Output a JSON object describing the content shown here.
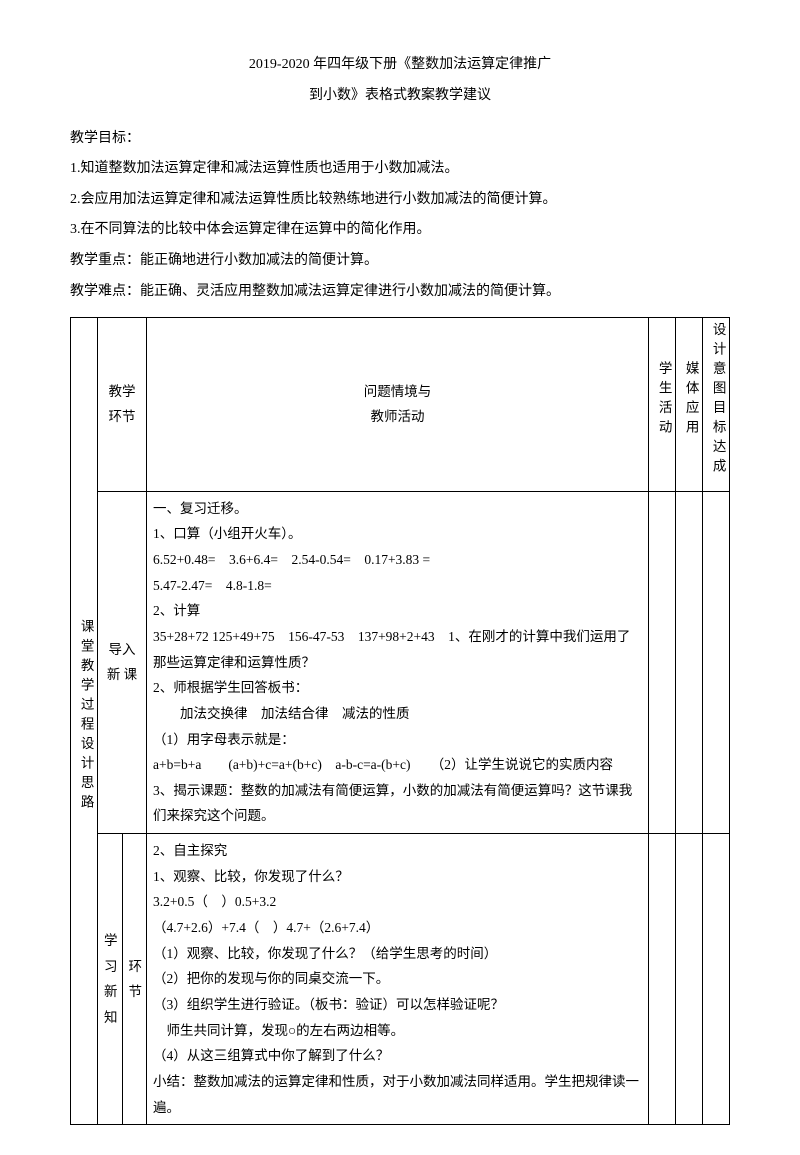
{
  "title_line1": "2019-2020 年四年级下册《整数加法运算定律推广",
  "title_line2": "到小数》表格式教案教学建议",
  "label_goal": "教学目标：",
  "goal1": "1.知道整数加法运算定律和减法运算性质也适用于小数加减法。",
  "goal2": "2.会应用加法运算定律和减法运算性质比较熟练地进行小数加减法的简便计算。",
  "goal3": "3.在不同算法的比较中体会运算定律在运算中的简化作用。",
  "focus": "教学重点：能正确地进行小数加减法的简便计算。",
  "difficulty": "教学难点：能正确、灵活应用整数加减法运算定律进行小数加减法的简便计算。",
  "row_label_vertical": "课堂教学过程设计思路",
  "hdr_segment": "教学环节",
  "hdr_main_l1": "问题情境与",
  "hdr_main_l2": "教师活动",
  "hdr_student": "学生活动",
  "hdr_media": "媒体应用",
  "hdr_design": "设计意图目标达成",
  "seg1": "导入新 课",
  "c1_l1": "一、复习迁移。",
  "c1_l2": "1、口算（小组开火车）。",
  "c1_l3": "6.52+0.48=　3.6+6.4=　2.54-0.54=　0.17+3.83 =",
  "c1_l4": "5.47-2.47=　4.8-1.8=",
  "c1_l5": "2、计算",
  "c1_l6": "35+28+72 125+49+75　156-47-53　137+98+2+43　1、在刚才的计算中我们运用了那些运算定律和运算性质？",
  "c1_l7": "2、师根据学生回答板书：",
  "c1_l8": "加法交换律　加法结合律　减法的性质",
  "c1_l9": "（1）用字母表示就是：",
  "c1_l10": "a+b=b+a　　(a+b)+c=a+(b+c)　a-b-c=a-(b+c)　　（2）让学生说说它的实质内容",
  "c1_l11": "3、揭示课题：整数的加减法有简便运算，小数的加减法有简便运算吗？这节课我们来探究这个问题。",
  "seg2a": "学习新知",
  "seg2b": "环节",
  "c2_l1": "2、自主探究",
  "c2_l2": "1、观察、比较，你发现了什么？",
  "c2_l3": "3.2+0.5（　）0.5+3.2",
  "c2_l4": "（4.7+2.6）+7.4（　）4.7+（2.6+7.4）",
  "c2_l5": "（1）观察、比较，你发现了什么？（给学生思考的时间）",
  "c2_l6": "（2）把你的发现与你的同桌交流一下。",
  "c2_l7": "（3）组织学生进行验证。（板书：验证）可以怎样验证呢？",
  "c2_l8": "　师生共同计算，发现○的左右两边相等。",
  "c2_l9": "（4）从这三组算式中你了解到了什么？",
  "c2_l10": "小结：整数加减法的运算定律和性质，对于小数加减法同样适用。学生把规律读一遍。"
}
